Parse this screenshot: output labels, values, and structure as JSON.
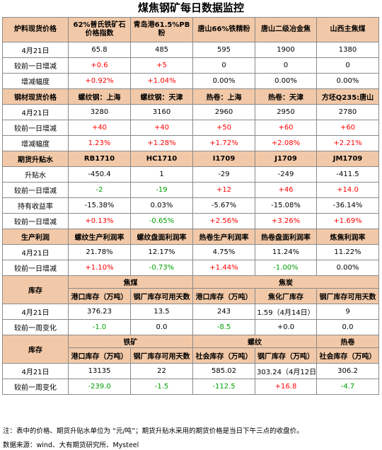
{
  "title": "煤焦钢矿每日数据监控",
  "s1": {
    "cols": [
      "炉料现货价格",
      "62%普氏铁矿石价格指数",
      "青岛港61.5%PB粉",
      "唐山66%铁精粉",
      "唐山二级冶金焦",
      "山西主焦煤"
    ],
    "rows": [
      {
        "label": "4月21日",
        "vals": [
          "65.8",
          "485",
          "595",
          "1900",
          "1380"
        ]
      },
      {
        "label": "较前一日增减",
        "vals": [
          "+0.6",
          "+5",
          "0",
          "0",
          "0"
        ]
      },
      {
        "label": "增减幅度",
        "vals": [
          "+0.92%",
          "+1.04%",
          "0.00%",
          "0.00%",
          "0.00%"
        ]
      }
    ]
  },
  "s2": {
    "cols": [
      "钢材现货价格",
      "螺纹钢：上海",
      "螺纹钢：天津",
      "热卷：上海",
      "热卷：天津",
      "方坯Q235:唐山"
    ],
    "rows": [
      {
        "label": "4月21日",
        "vals": [
          "3280",
          "3160",
          "2960",
          "2950",
          "2780"
        ]
      },
      {
        "label": "较前一日增减",
        "vals": [
          "+40",
          "+40",
          "+50",
          "+60",
          "+60"
        ]
      },
      {
        "label": "增减幅度",
        "vals": [
          "1.23%",
          "+1.28%",
          "+1.72%",
          "+2.08%",
          "+2.21%"
        ]
      }
    ]
  },
  "s3": {
    "cols": [
      "期货升贴水",
      "RB1710",
      "HC1710",
      "I1709",
      "J1709",
      "JM1709"
    ],
    "rows": [
      {
        "label": "升贴水",
        "vals": [
          "-450.4",
          "1",
          "-29",
          "-249",
          "-411.5"
        ]
      },
      {
        "label": "较前一日增减",
        "vals": [
          "-2",
          "-19",
          "+12",
          "+46",
          "+14.0"
        ]
      },
      {
        "label": "持有收益率",
        "vals": [
          "-15.38%",
          "0.03%",
          "-5.67%",
          "-15.08%",
          "-36.14%"
        ]
      },
      {
        "label": "较前一日增减",
        "vals": [
          "+0.13%",
          "-0.65%",
          "+2.56%",
          "+3.26%",
          "+1.69%"
        ]
      }
    ]
  },
  "s4": {
    "cols": [
      "生产利润",
      "螺纹生产利润率",
      "螺纹盘面利润率",
      "热卷生产利润率",
      "热卷盘面利润率",
      "炼焦利润率"
    ],
    "rows": [
      {
        "label": "4月21日",
        "vals": [
          "21.78%",
          "12.17%",
          "4.75%",
          "11.24%",
          "11.22%"
        ]
      },
      {
        "label": "较前一日增减",
        "vals": [
          "+1.10%",
          "-0.73%",
          "+1.44%",
          "-1.00%",
          "0.00%"
        ]
      }
    ]
  },
  "s5": {
    "section": "库存",
    "group_a": "焦煤",
    "group_b": "焦炭",
    "cols": [
      "港口库存（万吨）",
      "钢厂库存可用天数",
      "港口库存（万吨）",
      "焦化厂库存",
      "钢厂库存可用天数"
    ],
    "rows": [
      {
        "label": "4月21日",
        "vals": [
          "376.23",
          "13.5",
          "243",
          "1.59（4月14日）",
          "9"
        ]
      },
      {
        "label": "较前一周变化",
        "vals": [
          "-1.0",
          "0.0",
          "-8.5",
          "+0.0",
          "0.0"
        ]
      }
    ]
  },
  "s6": {
    "section": "库存",
    "group_a": "铁矿",
    "group_b": "螺纹",
    "group_c": "热卷",
    "cols": [
      "港口库存（万吨）",
      "钢厂库存可用天数",
      "社会库存（万吨）",
      "钢厂库存（万吨）",
      "社会库存（万吨）"
    ],
    "rows": [
      {
        "label": "4月21日",
        "vals": [
          "13135",
          "22",
          "585.02",
          "303.24（4月12日）",
          "306.2"
        ]
      },
      {
        "label": "较前一周变化",
        "vals": [
          "-239.0",
          "-1.5",
          "-112.5",
          "+16.8",
          "-4.7"
        ]
      }
    ]
  },
  "note": "注：表中的价格、期货升贴水单位为 “元/吨”；期货升贴水采用的期货价格是当日下午三点的收盘价。",
  "source": "数据来源：wind、大有期货研究所、Mysteel",
  "colors": {
    "header_bg": "#f2c9a8",
    "up": "#ff0000",
    "down": "#00a000"
  }
}
